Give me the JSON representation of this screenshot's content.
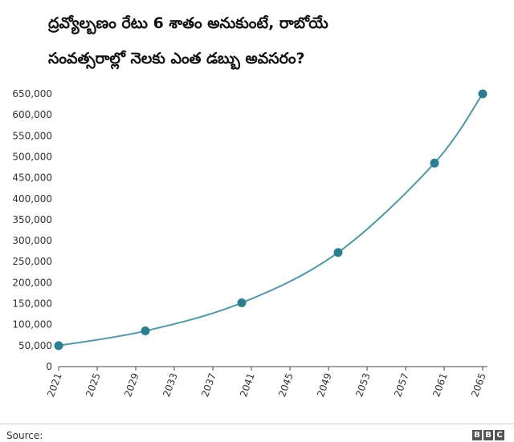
{
  "header": {
    "title_line1": "ద్రవ్యోల్బణం రేటు 6 శాతం అనుకుంటే, రాబోయే",
    "title_line2": "సంవత్సరాల్లో నెలకు ఎంత డబ్బు అవసరం?"
  },
  "chart_data": {
    "type": "line",
    "title": "ద్రవ్యోల్బణం రేటు 6 శాతం అనుకుంటే, రాబోయే సంవత్సరాల్లో నెలకు ఎంత డబ్బు అవసరం?",
    "xlabel": "",
    "ylabel": "",
    "x": [
      2021,
      2030,
      2040,
      2050,
      2060,
      2065
    ],
    "series": [
      {
        "values": [
          50000,
          85000,
          152000,
          272000,
          485000,
          650000
        ]
      }
    ],
    "x_ticks": [
      "2021",
      "2025",
      "2029",
      "2033",
      "2037",
      "2041",
      "2045",
      "2049",
      "2053",
      "2057",
      "2061",
      "2065"
    ],
    "y_ticks": [
      "0",
      "50,000",
      "100,000",
      "150,000",
      "200,000",
      "250,000",
      "300,000",
      "350,000",
      "400,000",
      "450,000",
      "500,000",
      "550,000",
      "600,000",
      "650,000"
    ],
    "xlim": [
      2021,
      2065
    ],
    "ylim": [
      0,
      650000
    ],
    "grid": false,
    "legend": "none",
    "line_color": "#4a9aa8",
    "marker_color": "#2a7f91"
  },
  "footer": {
    "source_label": "Source:",
    "logo_letters": [
      "B",
      "B",
      "C"
    ]
  }
}
